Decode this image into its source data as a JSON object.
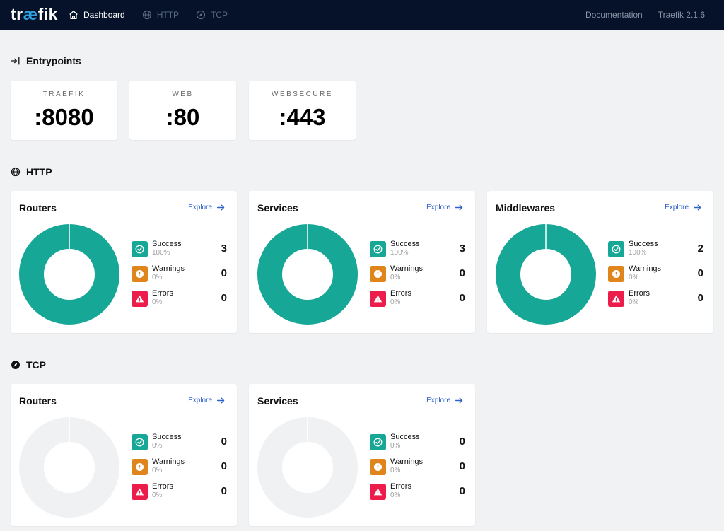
{
  "logo": {
    "pre": "tr",
    "ae": "æ",
    "post": "fik"
  },
  "nav": {
    "dashboard": "Dashboard",
    "http": "HTTP",
    "tcp": "TCP"
  },
  "top_right": {
    "documentation": "Documentation",
    "version": "Traefik 2.1.6"
  },
  "entrypoints": {
    "title": "Entrypoints",
    "items": [
      {
        "name": "TRAEFIK",
        "port": ":8080"
      },
      {
        "name": "WEB",
        "port": ":80"
      },
      {
        "name": "WEBSECURE",
        "port": ":443"
      }
    ]
  },
  "http": {
    "title": "HTTP",
    "cards": [
      {
        "title": "Routers",
        "explore": "Explore",
        "success": {
          "label": "Success",
          "pct": "100%",
          "count": "3"
        },
        "warnings": {
          "label": "Warnings",
          "pct": "0%",
          "count": "0"
        },
        "errors": {
          "label": "Errors",
          "pct": "0%",
          "count": "0"
        }
      },
      {
        "title": "Services",
        "explore": "Explore",
        "success": {
          "label": "Success",
          "pct": "100%",
          "count": "3"
        },
        "warnings": {
          "label": "Warnings",
          "pct": "0%",
          "count": "0"
        },
        "errors": {
          "label": "Errors",
          "pct": "0%",
          "count": "0"
        }
      },
      {
        "title": "Middlewares",
        "explore": "Explore",
        "success": {
          "label": "Success",
          "pct": "100%",
          "count": "2"
        },
        "warnings": {
          "label": "Warnings",
          "pct": "0%",
          "count": "0"
        },
        "errors": {
          "label": "Errors",
          "pct": "0%",
          "count": "0"
        }
      }
    ]
  },
  "tcp": {
    "title": "TCP",
    "cards": [
      {
        "title": "Routers",
        "explore": "Explore",
        "success": {
          "label": "Success",
          "pct": "0%",
          "count": "0"
        },
        "warnings": {
          "label": "Warnings",
          "pct": "0%",
          "count": "0"
        },
        "errors": {
          "label": "Errors",
          "pct": "0%",
          "count": "0"
        }
      },
      {
        "title": "Services",
        "explore": "Explore",
        "success": {
          "label": "Success",
          "pct": "0%",
          "count": "0"
        },
        "warnings": {
          "label": "Warnings",
          "pct": "0%",
          "count": "0"
        },
        "errors": {
          "label": "Errors",
          "pct": "0%",
          "count": "0"
        }
      }
    ]
  },
  "colors": {
    "success": "#16a796",
    "warning": "#e0851b",
    "error": "#ec1d4a",
    "empty": "#f0f1f3",
    "nav_bg": "#06122a",
    "accent": "#2f62c9"
  },
  "icons": {
    "dashboard": "home-icon",
    "http": "globe-icon",
    "tcp": "compass-icon",
    "entrypoints": "login-arrow-icon",
    "explore": "arrow-right-icon",
    "success": "check-circle-icon",
    "warning": "exclamation-circle-icon",
    "error": "warning-triangle-icon"
  }
}
